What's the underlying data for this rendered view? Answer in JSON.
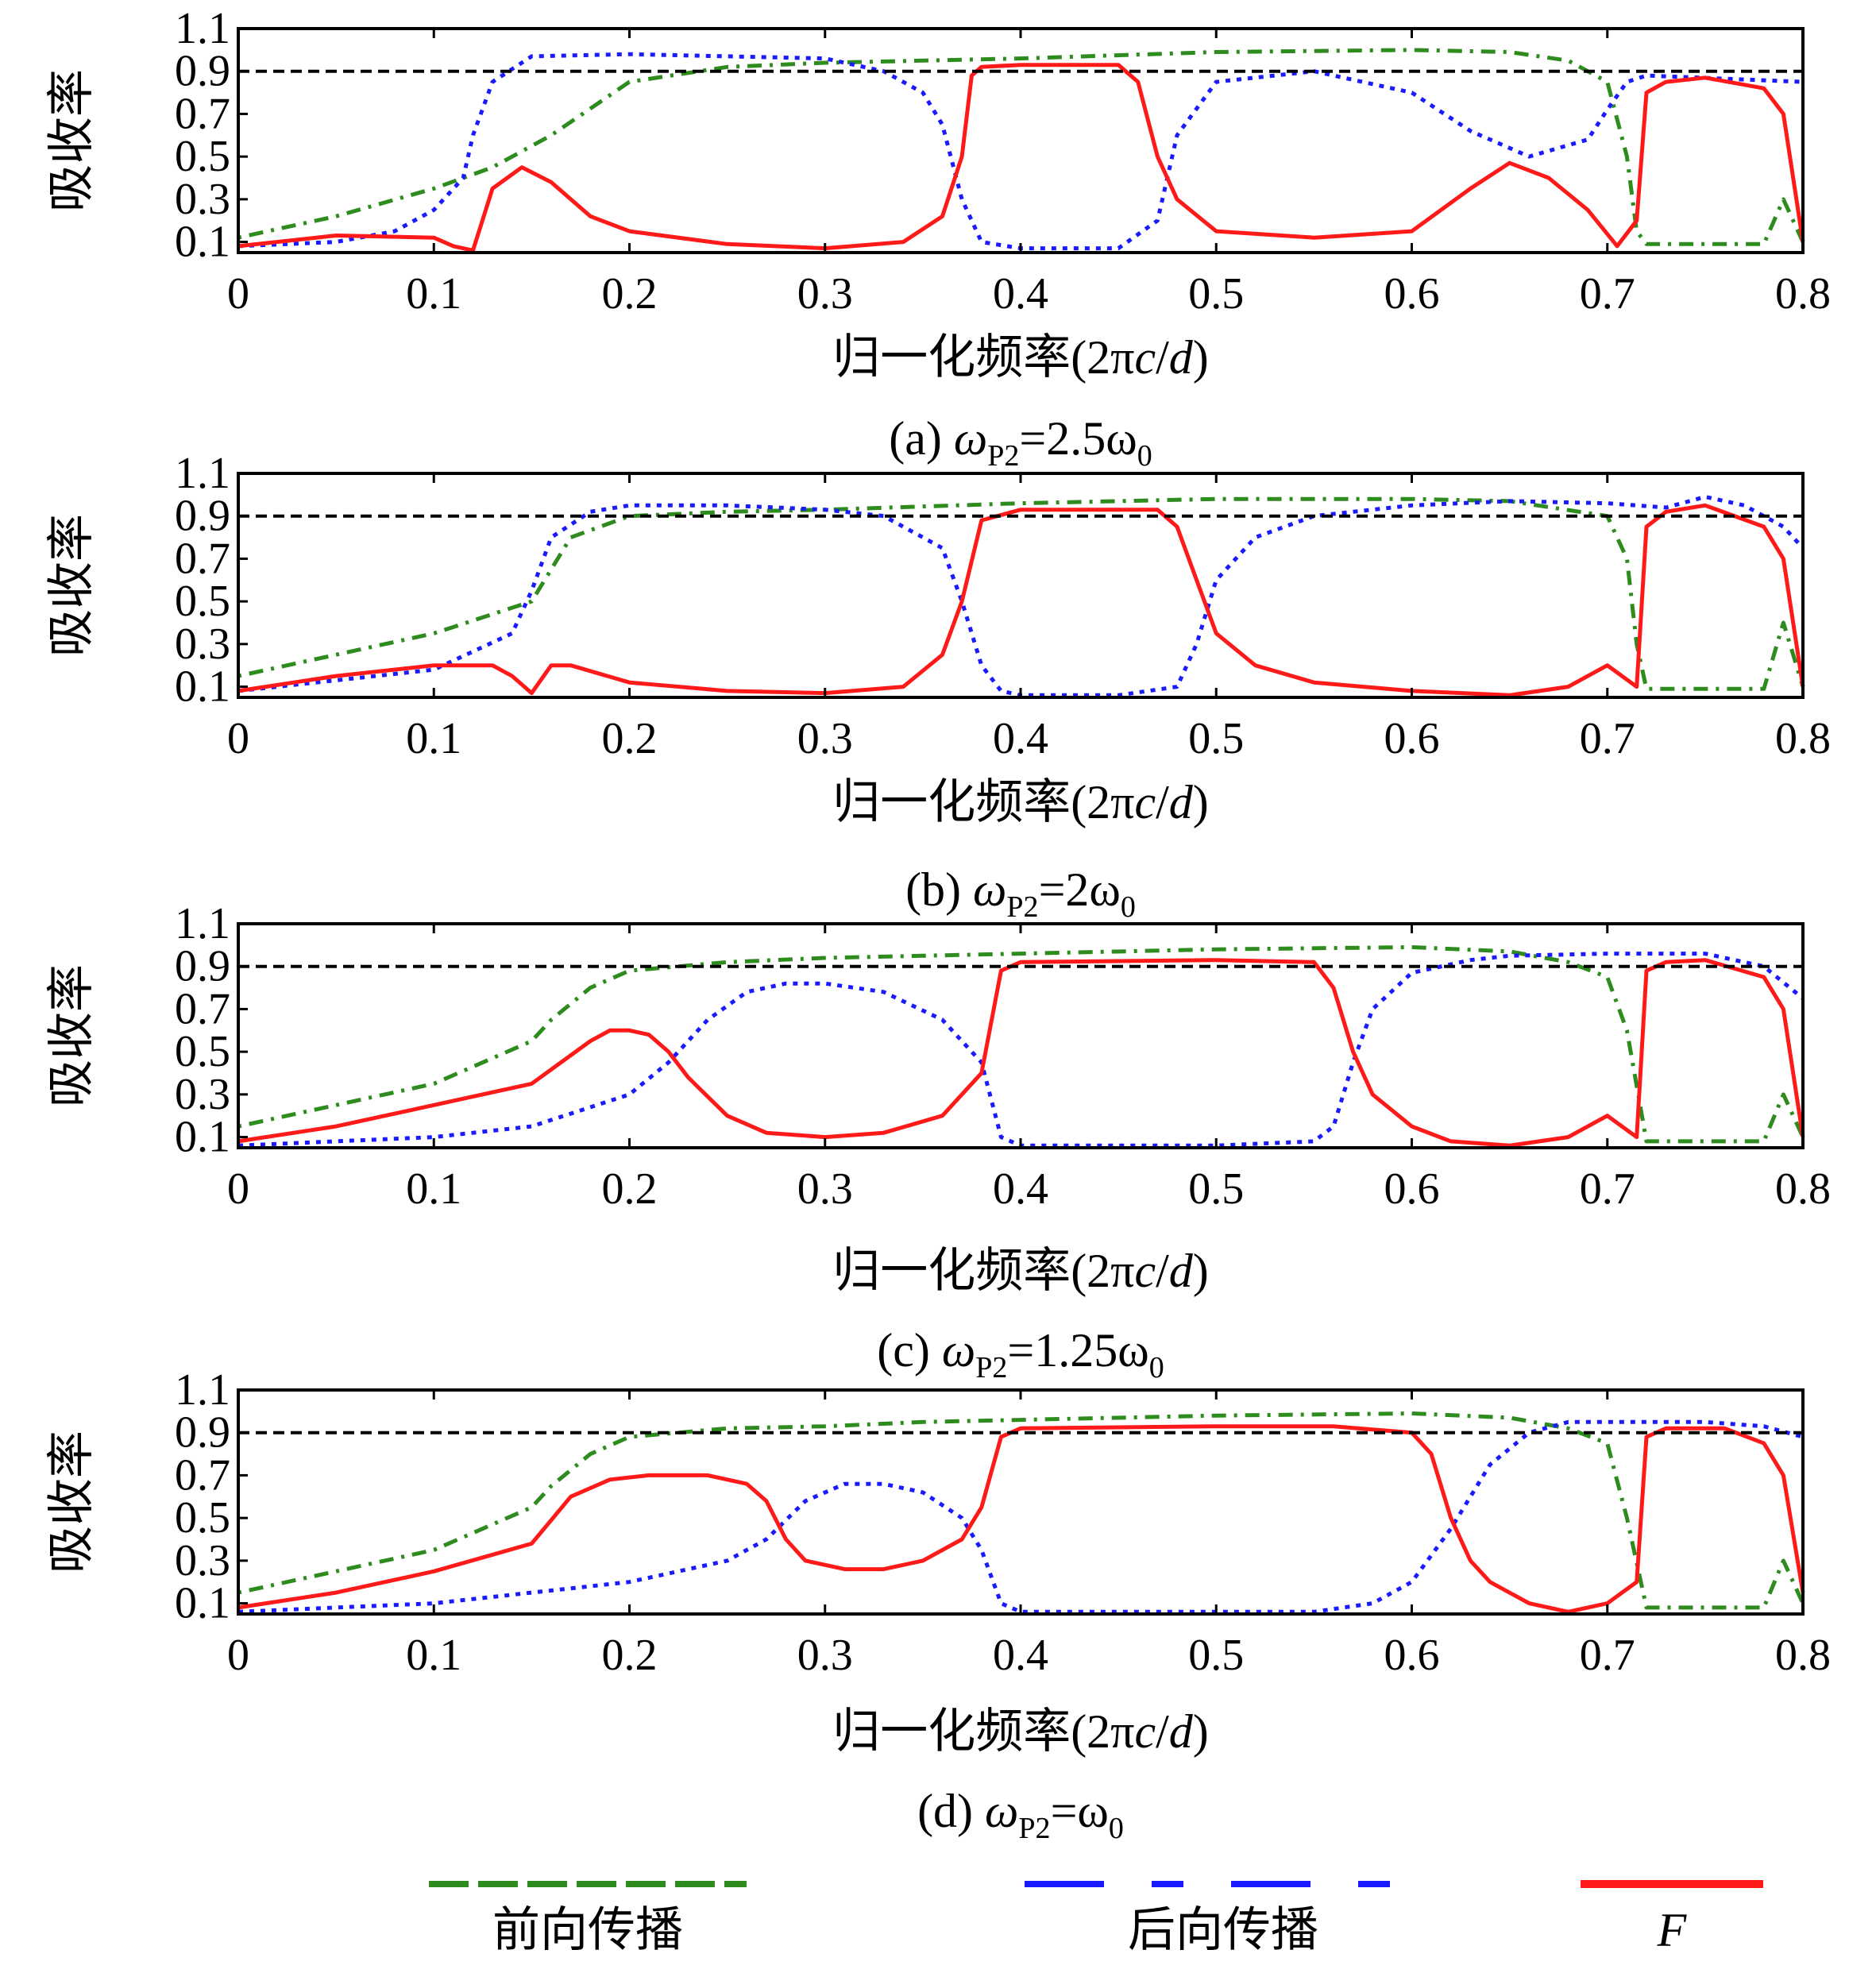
{
  "colors": {
    "forward": "#2e8b1e",
    "backward": "#1a1aff",
    "F": "#ff1a1a",
    "threshold": "#000000"
  },
  "legend": [
    {
      "label": "前向传播",
      "color": "#2e8b1e",
      "style": "dash-dot"
    },
    {
      "label": "后向传播",
      "color": "#1a1aff",
      "style": "dash"
    },
    {
      "label": "F",
      "color": "#ff1a1a",
      "style": "solid"
    }
  ],
  "chart_data": [
    {
      "panel": "a",
      "type": "line",
      "caption_prefix": "(a) ",
      "caption_omega": "ω",
      "caption_sub": "P2",
      "caption_rest": "=2.5ω",
      "caption_sub2": "0",
      "ylabel": "吸收率",
      "xlabel_prefix": "归一化频率(2π",
      "xlabel_c": "c",
      "xlabel_slash": "/",
      "xlabel_d": "d",
      "xlabel_suffix": ")",
      "xlim": [
        0,
        0.8
      ],
      "ylim": [
        0.05,
        1.1
      ],
      "xticks": [
        "0",
        "0.1",
        "0.2",
        "0.3",
        "0.4",
        "0.5",
        "0.6",
        "0.7",
        "0.8"
      ],
      "yticks": [
        "0.1",
        "0.3",
        "0.5",
        "0.7",
        "0.9",
        "1.1"
      ],
      "threshold": 0.9,
      "series": [
        {
          "key": "forward",
          "x": [
            0,
            0.05,
            0.1,
            0.13,
            0.16,
            0.2,
            0.25,
            0.3,
            0.35,
            0.4,
            0.5,
            0.6,
            0.65,
            0.68,
            0.7,
            0.71,
            0.715,
            0.72,
            0.78,
            0.79,
            0.8
          ],
          "y": [
            0.12,
            0.22,
            0.35,
            0.45,
            0.6,
            0.85,
            0.92,
            0.94,
            0.95,
            0.96,
            0.99,
            1.0,
            0.99,
            0.95,
            0.85,
            0.5,
            0.15,
            0.09,
            0.09,
            0.3,
            0.1
          ]
        },
        {
          "key": "backward",
          "x": [
            0,
            0.05,
            0.08,
            0.1,
            0.115,
            0.12,
            0.13,
            0.15,
            0.2,
            0.25,
            0.3,
            0.33,
            0.35,
            0.36,
            0.37,
            0.38,
            0.4,
            0.45,
            0.47,
            0.48,
            0.5,
            0.55,
            0.6,
            0.63,
            0.66,
            0.69,
            0.7,
            0.71,
            0.72,
            0.8
          ],
          "y": [
            0.08,
            0.1,
            0.15,
            0.25,
            0.4,
            0.6,
            0.85,
            0.97,
            0.98,
            0.97,
            0.96,
            0.9,
            0.8,
            0.65,
            0.3,
            0.1,
            0.07,
            0.07,
            0.2,
            0.6,
            0.85,
            0.9,
            0.8,
            0.62,
            0.5,
            0.58,
            0.72,
            0.85,
            0.88,
            0.85
          ]
        },
        {
          "key": "F",
          "x": [
            0,
            0.05,
            0.1,
            0.11,
            0.12,
            0.13,
            0.145,
            0.16,
            0.18,
            0.2,
            0.25,
            0.3,
            0.34,
            0.36,
            0.37,
            0.375,
            0.38,
            0.4,
            0.45,
            0.46,
            0.47,
            0.48,
            0.5,
            0.55,
            0.6,
            0.63,
            0.65,
            0.67,
            0.69,
            0.705,
            0.715,
            0.72,
            0.73,
            0.75,
            0.78,
            0.79,
            0.8
          ],
          "y": [
            0.08,
            0.13,
            0.12,
            0.08,
            0.06,
            0.35,
            0.45,
            0.38,
            0.22,
            0.15,
            0.09,
            0.07,
            0.1,
            0.22,
            0.5,
            0.88,
            0.92,
            0.93,
            0.93,
            0.85,
            0.5,
            0.3,
            0.15,
            0.12,
            0.15,
            0.35,
            0.47,
            0.4,
            0.25,
            0.08,
            0.2,
            0.8,
            0.85,
            0.87,
            0.82,
            0.7,
            0.1
          ]
        }
      ]
    },
    {
      "panel": "b",
      "type": "line",
      "caption_prefix": "(b) ",
      "caption_omega": "ω",
      "caption_sub": "P2",
      "caption_rest": "=2ω",
      "caption_sub2": "0",
      "ylabel": "吸收率",
      "xlabel_prefix": "归一化频率(2π",
      "xlabel_c": "c",
      "xlabel_slash": "/",
      "xlabel_d": "d",
      "xlabel_suffix": ")",
      "xlim": [
        0,
        0.8
      ],
      "ylim": [
        0.05,
        1.1
      ],
      "xticks": [
        "0",
        "0.1",
        "0.2",
        "0.3",
        "0.4",
        "0.5",
        "0.6",
        "0.7",
        "0.8"
      ],
      "yticks": [
        "0.1",
        "0.3",
        "0.5",
        "0.7",
        "0.9",
        "1.1"
      ],
      "threshold": 0.9,
      "series": [
        {
          "key": "forward",
          "x": [
            0,
            0.05,
            0.1,
            0.15,
            0.17,
            0.2,
            0.25,
            0.3,
            0.4,
            0.5,
            0.6,
            0.65,
            0.7,
            0.71,
            0.715,
            0.72,
            0.78,
            0.79,
            0.8
          ],
          "y": [
            0.15,
            0.25,
            0.35,
            0.5,
            0.8,
            0.9,
            0.92,
            0.93,
            0.96,
            0.98,
            0.98,
            0.97,
            0.9,
            0.7,
            0.3,
            0.09,
            0.09,
            0.4,
            0.1
          ]
        },
        {
          "key": "backward",
          "x": [
            0,
            0.05,
            0.1,
            0.14,
            0.15,
            0.16,
            0.18,
            0.2,
            0.25,
            0.3,
            0.33,
            0.36,
            0.37,
            0.38,
            0.39,
            0.4,
            0.45,
            0.48,
            0.49,
            0.5,
            0.52,
            0.55,
            0.6,
            0.65,
            0.7,
            0.73,
            0.75,
            0.77,
            0.79,
            0.8
          ],
          "y": [
            0.08,
            0.13,
            0.18,
            0.35,
            0.55,
            0.8,
            0.92,
            0.95,
            0.95,
            0.93,
            0.9,
            0.75,
            0.5,
            0.2,
            0.08,
            0.06,
            0.06,
            0.1,
            0.3,
            0.6,
            0.8,
            0.9,
            0.95,
            0.97,
            0.96,
            0.94,
            0.99,
            0.95,
            0.85,
            0.75
          ]
        },
        {
          "key": "F",
          "x": [
            0,
            0.05,
            0.1,
            0.13,
            0.14,
            0.15,
            0.16,
            0.17,
            0.2,
            0.25,
            0.3,
            0.34,
            0.36,
            0.37,
            0.38,
            0.4,
            0.47,
            0.48,
            0.49,
            0.5,
            0.52,
            0.55,
            0.6,
            0.65,
            0.68,
            0.7,
            0.715,
            0.72,
            0.73,
            0.75,
            0.78,
            0.79,
            0.8
          ],
          "y": [
            0.08,
            0.15,
            0.2,
            0.2,
            0.15,
            0.07,
            0.2,
            0.2,
            0.12,
            0.08,
            0.07,
            0.1,
            0.25,
            0.5,
            0.88,
            0.93,
            0.93,
            0.85,
            0.6,
            0.35,
            0.2,
            0.12,
            0.08,
            0.06,
            0.1,
            0.2,
            0.1,
            0.85,
            0.92,
            0.95,
            0.85,
            0.7,
            0.1
          ]
        }
      ]
    },
    {
      "panel": "c",
      "type": "line",
      "caption_prefix": "(c) ",
      "caption_omega": "ω",
      "caption_sub": "P2",
      "caption_rest": "=1.25ω",
      "caption_sub2": "0",
      "ylabel": "吸收率",
      "xlabel_prefix": "归一化频率(2π",
      "xlabel_c": "c",
      "xlabel_slash": "/",
      "xlabel_d": "d",
      "xlabel_suffix": ")",
      "xlim": [
        0,
        0.8
      ],
      "ylim": [
        0.05,
        1.1
      ],
      "xticks": [
        "0",
        "0.1",
        "0.2",
        "0.3",
        "0.4",
        "0.5",
        "0.6",
        "0.7",
        "0.8"
      ],
      "yticks": [
        "0.1",
        "0.3",
        "0.5",
        "0.7",
        "0.9",
        "1.1"
      ],
      "threshold": 0.9,
      "series": [
        {
          "key": "forward",
          "x": [
            0,
            0.05,
            0.1,
            0.15,
            0.16,
            0.18,
            0.2,
            0.25,
            0.3,
            0.35,
            0.4,
            0.5,
            0.6,
            0.65,
            0.68,
            0.7,
            0.71,
            0.72,
            0.78,
            0.79,
            0.8
          ],
          "y": [
            0.15,
            0.25,
            0.35,
            0.55,
            0.65,
            0.8,
            0.88,
            0.92,
            0.94,
            0.95,
            0.96,
            0.98,
            0.99,
            0.97,
            0.92,
            0.85,
            0.6,
            0.08,
            0.08,
            0.3,
            0.1
          ]
        },
        {
          "key": "backward",
          "x": [
            0,
            0.05,
            0.1,
            0.15,
            0.2,
            0.22,
            0.24,
            0.26,
            0.28,
            0.3,
            0.33,
            0.36,
            0.38,
            0.39,
            0.4,
            0.45,
            0.5,
            0.55,
            0.56,
            0.57,
            0.58,
            0.6,
            0.63,
            0.65,
            0.7,
            0.75,
            0.78,
            0.8
          ],
          "y": [
            0.06,
            0.08,
            0.1,
            0.15,
            0.3,
            0.45,
            0.65,
            0.78,
            0.82,
            0.82,
            0.78,
            0.65,
            0.45,
            0.1,
            0.06,
            0.06,
            0.06,
            0.08,
            0.15,
            0.45,
            0.7,
            0.87,
            0.93,
            0.95,
            0.96,
            0.96,
            0.9,
            0.75
          ]
        },
        {
          "key": "F",
          "x": [
            0,
            0.05,
            0.1,
            0.15,
            0.18,
            0.19,
            0.2,
            0.21,
            0.22,
            0.23,
            0.25,
            0.27,
            0.3,
            0.33,
            0.36,
            0.38,
            0.39,
            0.4,
            0.5,
            0.55,
            0.56,
            0.57,
            0.58,
            0.6,
            0.62,
            0.65,
            0.68,
            0.7,
            0.715,
            0.72,
            0.73,
            0.75,
            0.78,
            0.79,
            0.8
          ],
          "y": [
            0.08,
            0.15,
            0.25,
            0.35,
            0.55,
            0.6,
            0.6,
            0.58,
            0.5,
            0.38,
            0.2,
            0.12,
            0.1,
            0.12,
            0.2,
            0.4,
            0.88,
            0.92,
            0.93,
            0.92,
            0.8,
            0.5,
            0.3,
            0.15,
            0.08,
            0.06,
            0.1,
            0.2,
            0.1,
            0.88,
            0.92,
            0.93,
            0.85,
            0.7,
            0.1
          ]
        }
      ]
    },
    {
      "panel": "d",
      "type": "line",
      "caption_prefix": "(d) ",
      "caption_omega": "ω",
      "caption_sub": "P2",
      "caption_rest": "=ω",
      "caption_sub2": "0",
      "ylabel": "吸收率",
      "xlabel_prefix": "归一化频率(2π",
      "xlabel_c": "c",
      "xlabel_slash": "/",
      "xlabel_d": "d",
      "xlabel_suffix": ")",
      "xlim": [
        0,
        0.8
      ],
      "ylim": [
        0.05,
        1.1
      ],
      "xticks": [
        "0",
        "0.1",
        "0.2",
        "0.3",
        "0.4",
        "0.5",
        "0.6",
        "0.7",
        "0.8"
      ],
      "yticks": [
        "0.1",
        "0.3",
        "0.5",
        "0.7",
        "0.9",
        "1.1"
      ],
      "threshold": 0.9,
      "series": [
        {
          "key": "forward",
          "x": [
            0,
            0.05,
            0.1,
            0.15,
            0.16,
            0.18,
            0.2,
            0.25,
            0.3,
            0.35,
            0.4,
            0.5,
            0.6,
            0.65,
            0.68,
            0.7,
            0.71,
            0.72,
            0.78,
            0.79,
            0.8
          ],
          "y": [
            0.15,
            0.25,
            0.35,
            0.55,
            0.65,
            0.8,
            0.88,
            0.92,
            0.93,
            0.95,
            0.96,
            0.98,
            0.99,
            0.97,
            0.92,
            0.85,
            0.5,
            0.08,
            0.08,
            0.3,
            0.1
          ]
        },
        {
          "key": "backward",
          "x": [
            0,
            0.05,
            0.1,
            0.15,
            0.2,
            0.25,
            0.27,
            0.29,
            0.31,
            0.33,
            0.35,
            0.37,
            0.38,
            0.39,
            0.4,
            0.45,
            0.5,
            0.55,
            0.58,
            0.6,
            0.62,
            0.64,
            0.66,
            0.68,
            0.7,
            0.75,
            0.78,
            0.8
          ],
          "y": [
            0.06,
            0.08,
            0.1,
            0.15,
            0.2,
            0.3,
            0.4,
            0.58,
            0.66,
            0.66,
            0.62,
            0.5,
            0.35,
            0.1,
            0.06,
            0.06,
            0.06,
            0.06,
            0.1,
            0.2,
            0.45,
            0.75,
            0.9,
            0.95,
            0.95,
            0.95,
            0.93,
            0.88
          ]
        },
        {
          "key": "F",
          "x": [
            0,
            0.05,
            0.1,
            0.15,
            0.17,
            0.19,
            0.21,
            0.24,
            0.26,
            0.27,
            0.28,
            0.29,
            0.31,
            0.33,
            0.35,
            0.37,
            0.38,
            0.39,
            0.4,
            0.5,
            0.56,
            0.6,
            0.61,
            0.62,
            0.63,
            0.64,
            0.66,
            0.68,
            0.7,
            0.715,
            0.72,
            0.73,
            0.76,
            0.78,
            0.79,
            0.8
          ],
          "y": [
            0.08,
            0.15,
            0.25,
            0.38,
            0.6,
            0.68,
            0.7,
            0.7,
            0.66,
            0.58,
            0.4,
            0.3,
            0.26,
            0.26,
            0.3,
            0.4,
            0.55,
            0.88,
            0.92,
            0.93,
            0.93,
            0.9,
            0.8,
            0.5,
            0.3,
            0.2,
            0.1,
            0.06,
            0.1,
            0.2,
            0.88,
            0.92,
            0.92,
            0.85,
            0.7,
            0.15
          ]
        }
      ]
    }
  ]
}
